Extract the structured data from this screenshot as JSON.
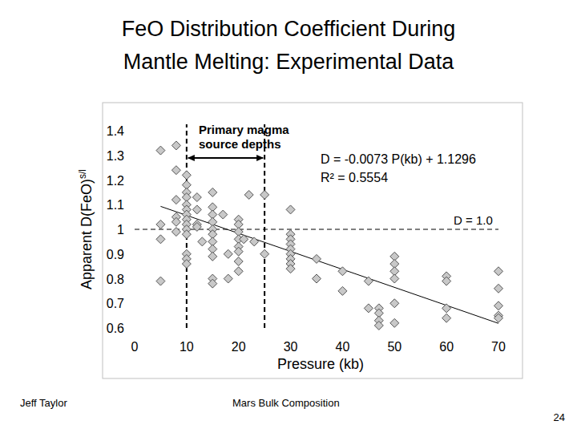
{
  "chart_data": {
    "type": "scatter",
    "title": [
      "FeO Distribution Coefficient During",
      "Mantle Melting: Experimental Data"
    ],
    "xlabel": "Pressure (kb)",
    "ylabel": "Apparent D(FeO)",
    "ylabel_sup": "s/l",
    "x": [
      5,
      5,
      5,
      5,
      8,
      8,
      8,
      8,
      8,
      8,
      10,
      10,
      10,
      10,
      10,
      10,
      10,
      10,
      10,
      10,
      10,
      10,
      10,
      10,
      12,
      12,
      12,
      12,
      13,
      15,
      15,
      15,
      15,
      15,
      15,
      15,
      15,
      15,
      15,
      15,
      17,
      18,
      18,
      20,
      20,
      20,
      20,
      20,
      20,
      20,
      20,
      21,
      22,
      23,
      25,
      25,
      30,
      30,
      30,
      30,
      30,
      30,
      30,
      30,
      30,
      35,
      35,
      40,
      40,
      45,
      45,
      47,
      47,
      47,
      47,
      50,
      50,
      50,
      50,
      50,
      50,
      60,
      60,
      60,
      60,
      70,
      70,
      70,
      70,
      70
    ],
    "values": [
      1.32,
      1.02,
      0.96,
      0.79,
      1.34,
      1.24,
      1.12,
      1.05,
      1.03,
      0.99,
      1.22,
      1.18,
      1.15,
      1.13,
      1.1,
      1.08,
      1.06,
      1.04,
      1.02,
      1.0,
      0.98,
      0.9,
      0.88,
      0.86,
      1.13,
      1.08,
      1.02,
      1.01,
      0.95,
      1.15,
      1.09,
      1.06,
      1.03,
      1.0,
      0.98,
      0.95,
      0.92,
      0.89,
      0.8,
      0.78,
      1.06,
      0.9,
      0.8,
      1.04,
      1.02,
      0.99,
      0.96,
      0.93,
      0.91,
      0.87,
      0.83,
      0.96,
      1.14,
      0.95,
      1.14,
      0.9,
      1.08,
      0.98,
      0.96,
      0.94,
      0.92,
      0.9,
      0.88,
      0.86,
      0.84,
      0.88,
      0.8,
      0.83,
      0.75,
      0.79,
      0.68,
      0.68,
      0.66,
      0.63,
      0.61,
      0.89,
      0.86,
      0.83,
      0.8,
      0.7,
      0.62,
      0.81,
      0.79,
      0.68,
      0.64,
      0.83,
      0.76,
      0.69,
      0.65,
      0.64
    ],
    "color": "#c8c8c8",
    "marker": "diamond",
    "xlim": [
      0,
      70
    ],
    "ylim": [
      0.6,
      1.4
    ],
    "xticks": [
      0,
      10,
      20,
      30,
      40,
      50,
      60,
      70
    ],
    "yticks": [
      {
        "value": 0.6,
        "label": "0.6"
      },
      {
        "value": 0.7,
        "label": "0.7"
      },
      {
        "value": 0.8,
        "label": "0.8"
      },
      {
        "value": 0.9,
        "label": "0.9"
      },
      1,
      {
        "value": 1.1,
        "label": "1.1"
      },
      {
        "value": 1.2,
        "label": "1.2"
      },
      {
        "value": 1.3,
        "label": "1.3"
      },
      {
        "value": 1.4,
        "label": "1.4"
      }
    ],
    "grid": false,
    "trendline": {
      "slope": -0.0073,
      "intercept": 1.1296,
      "x_range": [
        5,
        70
      ],
      "equation": "D = -0.0073 P(kb) + 1.1296",
      "r2": "R² = 0.5554"
    },
    "reference_line": {
      "y": 1.0,
      "label": "D = 1.0",
      "line_style": "dashed"
    },
    "source_depths": {
      "range": [
        10,
        25
      ],
      "label": [
        "Primary magma",
        "source depths"
      ],
      "line_style": "dashed"
    }
  },
  "footer": {
    "author": "Jeff Taylor",
    "deck": "Mars Bulk Composition",
    "page": "24"
  }
}
